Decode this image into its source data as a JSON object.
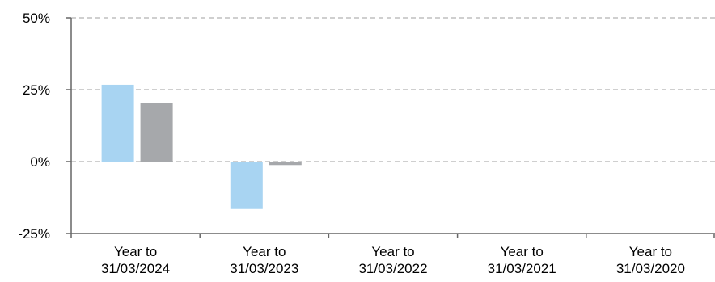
{
  "chart_data": {
    "type": "bar",
    "title": "",
    "xlabel": "",
    "ylabel": "",
    "ylim": [
      -25,
      50
    ],
    "yticks": [
      50,
      25,
      0,
      -25
    ],
    "ytick_labels": [
      "50%",
      "25%",
      "0%",
      "-25%"
    ],
    "grid": true,
    "categories": [
      [
        "Year to",
        "31/03/2024"
      ],
      [
        "Year to",
        "31/03/2023"
      ],
      [
        "Year to",
        "31/03/2022"
      ],
      [
        "Year to",
        "31/03/2021"
      ],
      [
        "Year to",
        "31/03/2020"
      ]
    ],
    "series": [
      {
        "color": "#a8d4f2",
        "values": [
          26.7,
          -16.5,
          null,
          null,
          null
        ]
      },
      {
        "color": "#a6a8ab",
        "values": [
          20.5,
          -1.2,
          null,
          null,
          null
        ]
      }
    ],
    "colors": {
      "axis": "#666666",
      "grid": "#bfbfbf"
    }
  }
}
